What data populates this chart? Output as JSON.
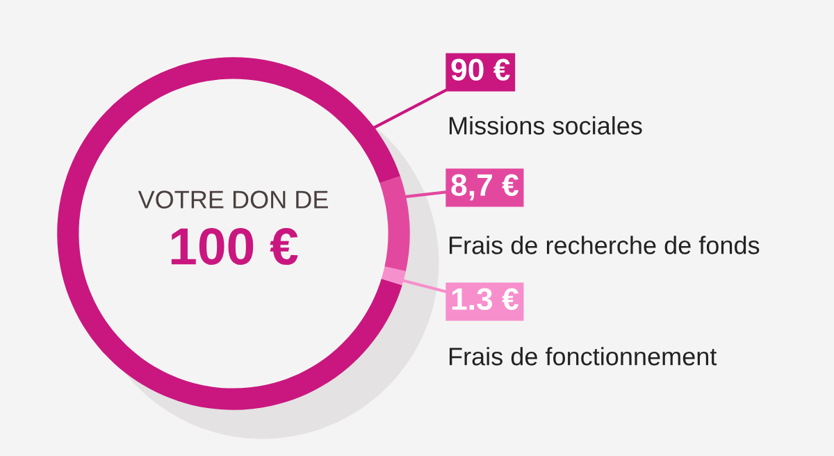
{
  "chart_data": {
    "type": "donut",
    "categories": [
      "Missions sociales",
      "Frais de recherche de fonds",
      "Frais de fonctionnement"
    ],
    "values": [
      90,
      8.7,
      1.3
    ],
    "value_labels": [
      "90 €",
      "8,7 €",
      "1.3 €"
    ],
    "colors": [
      "#c9177f",
      "#e3489f",
      "#f78fcd"
    ],
    "annotations": [
      "VOTRE DON DE",
      "100 €"
    ],
    "legend": "right"
  }
}
